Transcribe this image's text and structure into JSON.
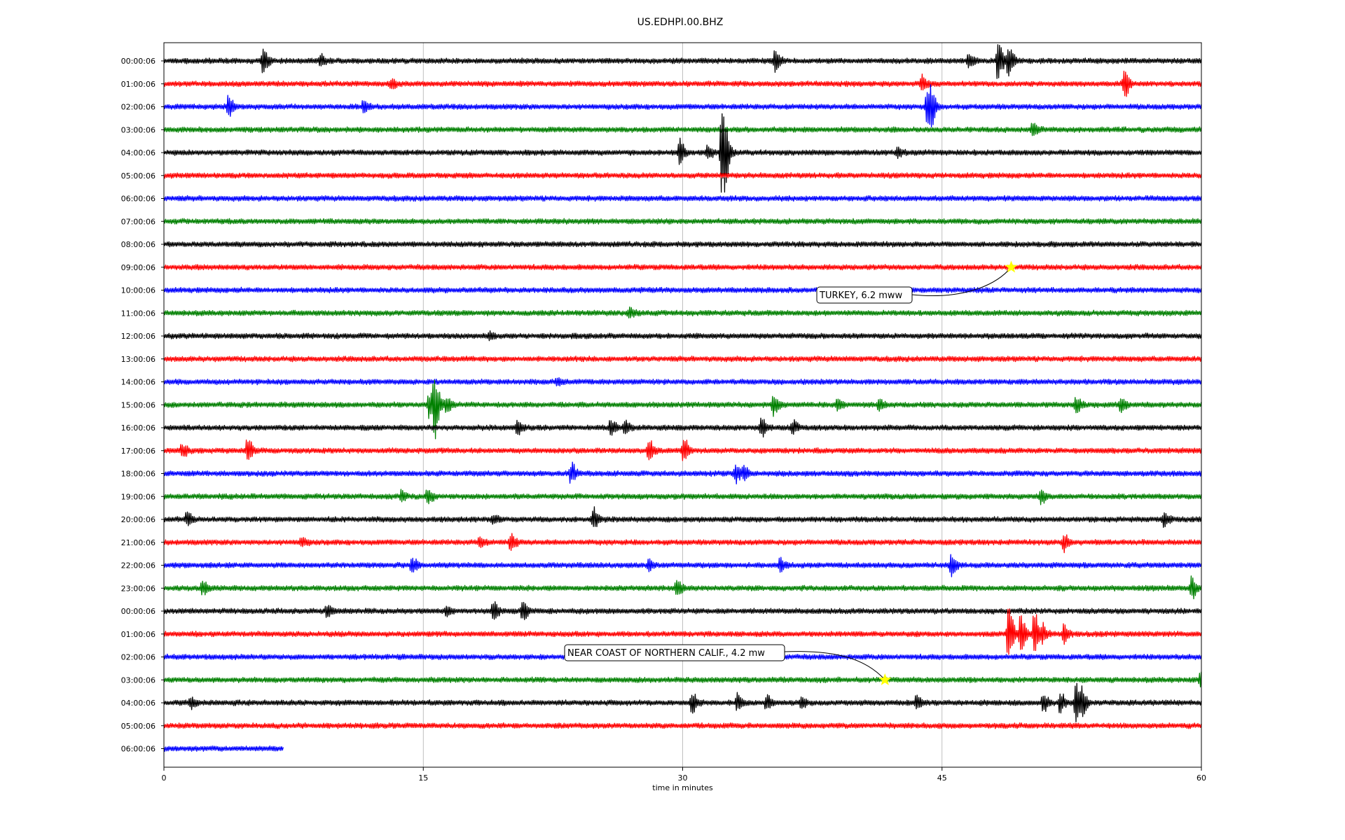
{
  "chart_data": {
    "type": "line",
    "title": "US.EDHPI.00.BHZ",
    "xlabel": "time in minutes",
    "ylabel": "",
    "xlim": [
      0,
      60
    ],
    "x_ticks": [
      0,
      15,
      30,
      45,
      60
    ],
    "x_tick_labels": [
      "0",
      "15",
      "30",
      "45",
      "60"
    ],
    "grid": "vertical",
    "legend": "none",
    "trace_colors": [
      "#000000",
      "#ff0000",
      "#0000ff",
      "#008000"
    ],
    "rows": [
      {
        "label": "00:00:06",
        "end_minute": 60,
        "events": [
          [
            5.7,
            0.9
          ],
          [
            9,
            0.4
          ],
          [
            35.3,
            0.8
          ],
          [
            46.5,
            0.5
          ],
          [
            48.2,
            1.3
          ],
          [
            48.8,
            1.2
          ]
        ]
      },
      {
        "label": "01:00:06",
        "end_minute": 60,
        "events": [
          [
            13.1,
            0.3
          ],
          [
            43.8,
            0.5
          ],
          [
            55.5,
            1.0
          ]
        ]
      },
      {
        "label": "02:00:06",
        "end_minute": 60,
        "events": [
          [
            3.7,
            0.9
          ],
          [
            11.5,
            0.4
          ],
          [
            44.1,
            1.4
          ],
          [
            44.3,
            1.0
          ]
        ]
      },
      {
        "label": "03:00:06",
        "end_minute": 60,
        "events": [
          [
            50.2,
            0.6
          ]
        ]
      },
      {
        "label": "04:00:06",
        "end_minute": 60,
        "events": [
          [
            29.8,
            0.9
          ],
          [
            31.4,
            0.4
          ],
          [
            32.2,
            3.0
          ],
          [
            32.4,
            1.1
          ],
          [
            42.4,
            0.3
          ]
        ]
      },
      {
        "label": "05:00:06",
        "end_minute": 60,
        "events": []
      },
      {
        "label": "06:00:06",
        "end_minute": 60,
        "events": []
      },
      {
        "label": "07:00:06",
        "end_minute": 60,
        "events": []
      },
      {
        "label": "08:00:06",
        "end_minute": 60,
        "events": []
      },
      {
        "label": "09:00:06",
        "end_minute": 60,
        "events": []
      },
      {
        "label": "10:00:06",
        "end_minute": 60,
        "events": []
      },
      {
        "label": "11:00:06",
        "end_minute": 60,
        "events": [
          [
            26.9,
            0.4
          ]
        ]
      },
      {
        "label": "12:00:06",
        "end_minute": 60,
        "events": [
          [
            18.8,
            0.3
          ]
        ]
      },
      {
        "label": "13:00:06",
        "end_minute": 60,
        "events": []
      },
      {
        "label": "14:00:06",
        "end_minute": 60,
        "events": [
          [
            22.7,
            0.3
          ]
        ]
      },
      {
        "label": "15:00:06",
        "end_minute": 60,
        "events": [
          [
            15.3,
            1.1
          ],
          [
            15.6,
            2.4
          ],
          [
            16.3,
            0.6
          ],
          [
            35.2,
            0.7
          ],
          [
            38.9,
            0.4
          ],
          [
            41.3,
            0.4
          ],
          [
            52.7,
            0.6
          ],
          [
            55.3,
            0.6
          ]
        ]
      },
      {
        "label": "16:00:06",
        "end_minute": 60,
        "events": [
          [
            20.4,
            0.6
          ],
          [
            25.8,
            0.6
          ],
          [
            26.6,
            0.5
          ],
          [
            34.5,
            0.7
          ],
          [
            36.3,
            0.5
          ]
        ]
      },
      {
        "label": "17:00:06",
        "end_minute": 60,
        "events": [
          [
            1.0,
            0.5
          ],
          [
            4.8,
            0.8
          ],
          [
            28.0,
            0.8
          ],
          [
            30.0,
            1.0
          ]
        ]
      },
      {
        "label": "18:00:06",
        "end_minute": 60,
        "events": [
          [
            23.5,
            0.8
          ],
          [
            33.0,
            0.7
          ],
          [
            33.5,
            0.5
          ]
        ]
      },
      {
        "label": "19:00:06",
        "end_minute": 60,
        "events": [
          [
            13.7,
            0.4
          ],
          [
            15.2,
            0.5
          ],
          [
            50.7,
            0.5
          ]
        ]
      },
      {
        "label": "20:00:06",
        "end_minute": 60,
        "events": [
          [
            1.3,
            0.5
          ],
          [
            19.0,
            0.3
          ],
          [
            24.8,
            0.8
          ],
          [
            57.8,
            0.5
          ]
        ]
      },
      {
        "label": "21:00:06",
        "end_minute": 60,
        "events": [
          [
            7.9,
            0.3
          ],
          [
            18.2,
            0.4
          ],
          [
            20.0,
            0.7
          ],
          [
            52.0,
            0.6
          ]
        ]
      },
      {
        "label": "22:00:06",
        "end_minute": 60,
        "events": [
          [
            14.3,
            0.6
          ],
          [
            28.0,
            0.4
          ],
          [
            35.6,
            0.5
          ],
          [
            45.5,
            0.7
          ]
        ]
      },
      {
        "label": "23:00:06",
        "end_minute": 60,
        "events": [
          [
            2.2,
            0.5
          ],
          [
            29.6,
            0.7
          ],
          [
            59.4,
            0.7
          ]
        ]
      },
      {
        "label": "00:00:06",
        "end_minute": 60,
        "events": [
          [
            9.4,
            0.5
          ],
          [
            16.3,
            0.3
          ],
          [
            19.0,
            0.8
          ],
          [
            20.7,
            0.6
          ]
        ]
      },
      {
        "label": "01:00:06",
        "end_minute": 60,
        "events": [
          [
            48.8,
            2.4
          ],
          [
            49.5,
            1.6
          ],
          [
            50.3,
            1.5
          ],
          [
            50.8,
            0.6
          ],
          [
            52.0,
            0.6
          ]
        ]
      },
      {
        "label": "02:00:06",
        "end_minute": 60,
        "events": []
      },
      {
        "label": "03:00:06",
        "end_minute": 60,
        "events": [
          [
            59.9,
            0.5
          ]
        ]
      },
      {
        "label": "04:00:06",
        "end_minute": 60,
        "events": [
          [
            1.5,
            0.4
          ],
          [
            30.5,
            0.8
          ],
          [
            33.1,
            0.7
          ],
          [
            34.8,
            0.5
          ],
          [
            36.8,
            0.4
          ],
          [
            43.5,
            0.5
          ],
          [
            50.8,
            0.6
          ],
          [
            51.8,
            0.7
          ],
          [
            52.7,
            2.0
          ],
          [
            53.1,
            0.7
          ]
        ]
      },
      {
        "label": "05:00:06",
        "end_minute": 60,
        "events": []
      },
      {
        "label": "06:00:06",
        "end_minute": 6.95,
        "events": []
      }
    ],
    "annotations": [
      {
        "text": "TURKEY, 6.2 mww",
        "row": 9,
        "minute": 49.0,
        "marker": "star",
        "marker_color": "#ffff00"
      },
      {
        "text": "NEAR COAST OF NORTHERN CALIF., 4.2 mw",
        "row": 27,
        "minute": 41.7,
        "marker": "star",
        "marker_color": "#ffff00"
      }
    ]
  }
}
